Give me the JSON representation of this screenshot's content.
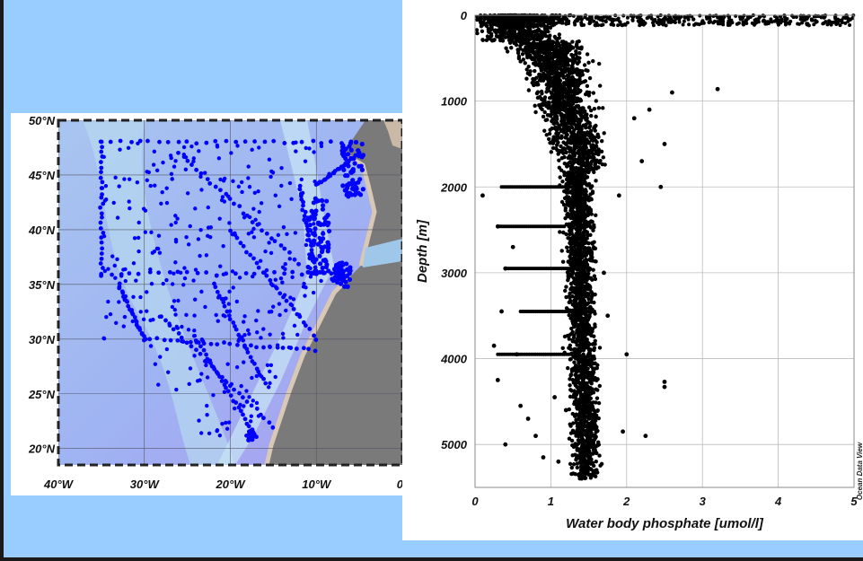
{
  "colors": {
    "background": "#99ccff",
    "station_dots": "#0000ff",
    "profile_dots": "#000000",
    "ocean": "#a9bdf2",
    "land": "#7a7a7a"
  },
  "chart_data": [
    {
      "type": "scatter",
      "description_role": "station map",
      "xlim": [
        -40,
        0
      ],
      "ylim": [
        18.5,
        50
      ],
      "x_tick_labels": [
        "40°W",
        "30°W",
        "20°W",
        "10°W",
        "0°"
      ],
      "x_tick_values": [
        -40,
        -30,
        -20,
        -10,
        0
      ],
      "y_tick_labels": [
        "50°N",
        "45°N",
        "40°N",
        "35°N",
        "30°N",
        "25°N",
        "20°N"
      ],
      "y_tick_values": [
        50,
        45,
        40,
        35,
        30,
        25,
        20
      ],
      "grid": true,
      "station_tracks": [
        {
          "from": [
            -35,
            48
          ],
          "to": [
            -35,
            36
          ]
        },
        {
          "from": [
            -35,
            36
          ],
          "to": [
            -6,
            36
          ]
        },
        {
          "from": [
            -35,
            48
          ],
          "to": [
            -6,
            48
          ]
        },
        {
          "from": [
            -26,
            47
          ],
          "to": [
            -12,
            37
          ]
        },
        {
          "from": [
            -33,
            35
          ],
          "to": [
            -30,
            30
          ]
        },
        {
          "from": [
            -30,
            30
          ],
          "to": [
            -10,
            29
          ]
        },
        {
          "from": [
            -28,
            32
          ],
          "to": [
            -15,
            22
          ]
        },
        {
          "from": [
            -24,
            30
          ],
          "to": [
            -17,
            21
          ]
        },
        {
          "from": [
            -12,
            44
          ],
          "to": [
            -10,
            36
          ]
        },
        {
          "from": [
            -10,
            44
          ],
          "to": [
            -5,
            47
          ]
        },
        {
          "from": [
            -20,
            40
          ],
          "to": [
            -10,
            30
          ]
        },
        {
          "from": [
            -22,
            35
          ],
          "to": [
            -16,
            26
          ]
        }
      ]
    },
    {
      "type": "scatter",
      "description_role": "depth profile",
      "xlabel": "Water body phosphate [umol/l]",
      "ylabel": "Depth [m]",
      "xlim": [
        0,
        5
      ],
      "ylim": [
        5500,
        0
      ],
      "y_inverted": true,
      "x_ticks": [
        0,
        1,
        2,
        3,
        4,
        5
      ],
      "y_ticks": [
        0,
        1000,
        2000,
        3000,
        4000,
        5000
      ],
      "grid": true,
      "credit": "Ocean Data View",
      "points": [
        [
          3.2,
          860
        ],
        [
          2.6,
          900
        ],
        [
          2.3,
          1100
        ],
        [
          2.5,
          1500
        ],
        [
          2.45,
          2000
        ],
        [
          2.1,
          1200
        ],
        [
          2.2,
          1700
        ],
        [
          1.9,
          2100
        ],
        [
          2.0,
          3950
        ],
        [
          1.7,
          3000
        ],
        [
          1.75,
          3500
        ],
        [
          1.95,
          4850
        ],
        [
          2.25,
          4900
        ],
        [
          2.5,
          4270
        ],
        [
          2.5,
          4330
        ],
        [
          0.3,
          4250
        ],
        [
          0.35,
          3450
        ],
        [
          0.25,
          3850
        ],
        [
          0.4,
          5000
        ],
        [
          0.6,
          4550
        ],
        [
          1.1,
          5200
        ],
        [
          0.4,
          2950
        ],
        [
          0.3,
          2460
        ],
        [
          0.5,
          2700
        ],
        [
          0.1,
          2100
        ],
        [
          4.1,
          50
        ],
        [
          4.0,
          90
        ],
        [
          3.5,
          20
        ],
        [
          4.3,
          10
        ],
        [
          4.9,
          5
        ],
        [
          0.7,
          4700
        ],
        [
          0.9,
          5150
        ],
        [
          1.2,
          4600
        ],
        [
          1.4,
          5300
        ],
        [
          1.6,
          5100
        ],
        [
          0.8,
          4900
        ],
        [
          1.05,
          4450
        ],
        [
          1.5,
          5350
        ],
        [
          1.35,
          5050
        ],
        [
          0.55,
          3950
        ]
      ]
    }
  ]
}
